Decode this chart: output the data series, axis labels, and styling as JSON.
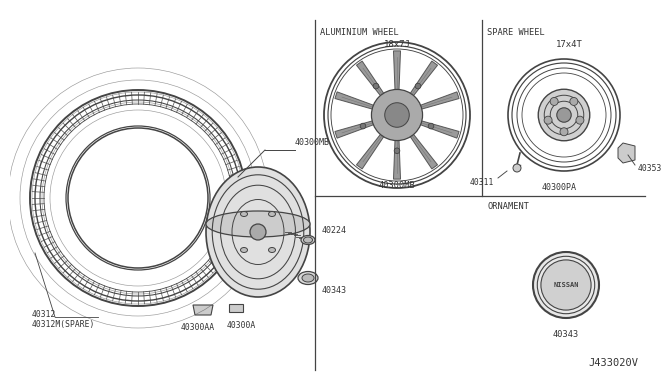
{
  "bg_color": "#ffffff",
  "line_color": "#444444",
  "text_color": "#333333",
  "part_number_ref": "J433020V",
  "al_wheel_label": "ALUMINIUM WHEEL",
  "al_wheel_spec": "18x7J",
  "al_wheel_part": "40300MB",
  "spare_wheel_label": "SPARE WHEEL",
  "spare_wheel_spec": "17x4T",
  "spare_parts": [
    "40311",
    "40300PA",
    "40353"
  ],
  "ornament_label": "ORNAMENT",
  "ornament_part": "40343",
  "left_tire_label": "40312\n40312M(SPARE)",
  "left_hub_label": "40300MB",
  "left_parts": [
    "40224",
    "40343",
    "40300AA",
    "40300A"
  ]
}
